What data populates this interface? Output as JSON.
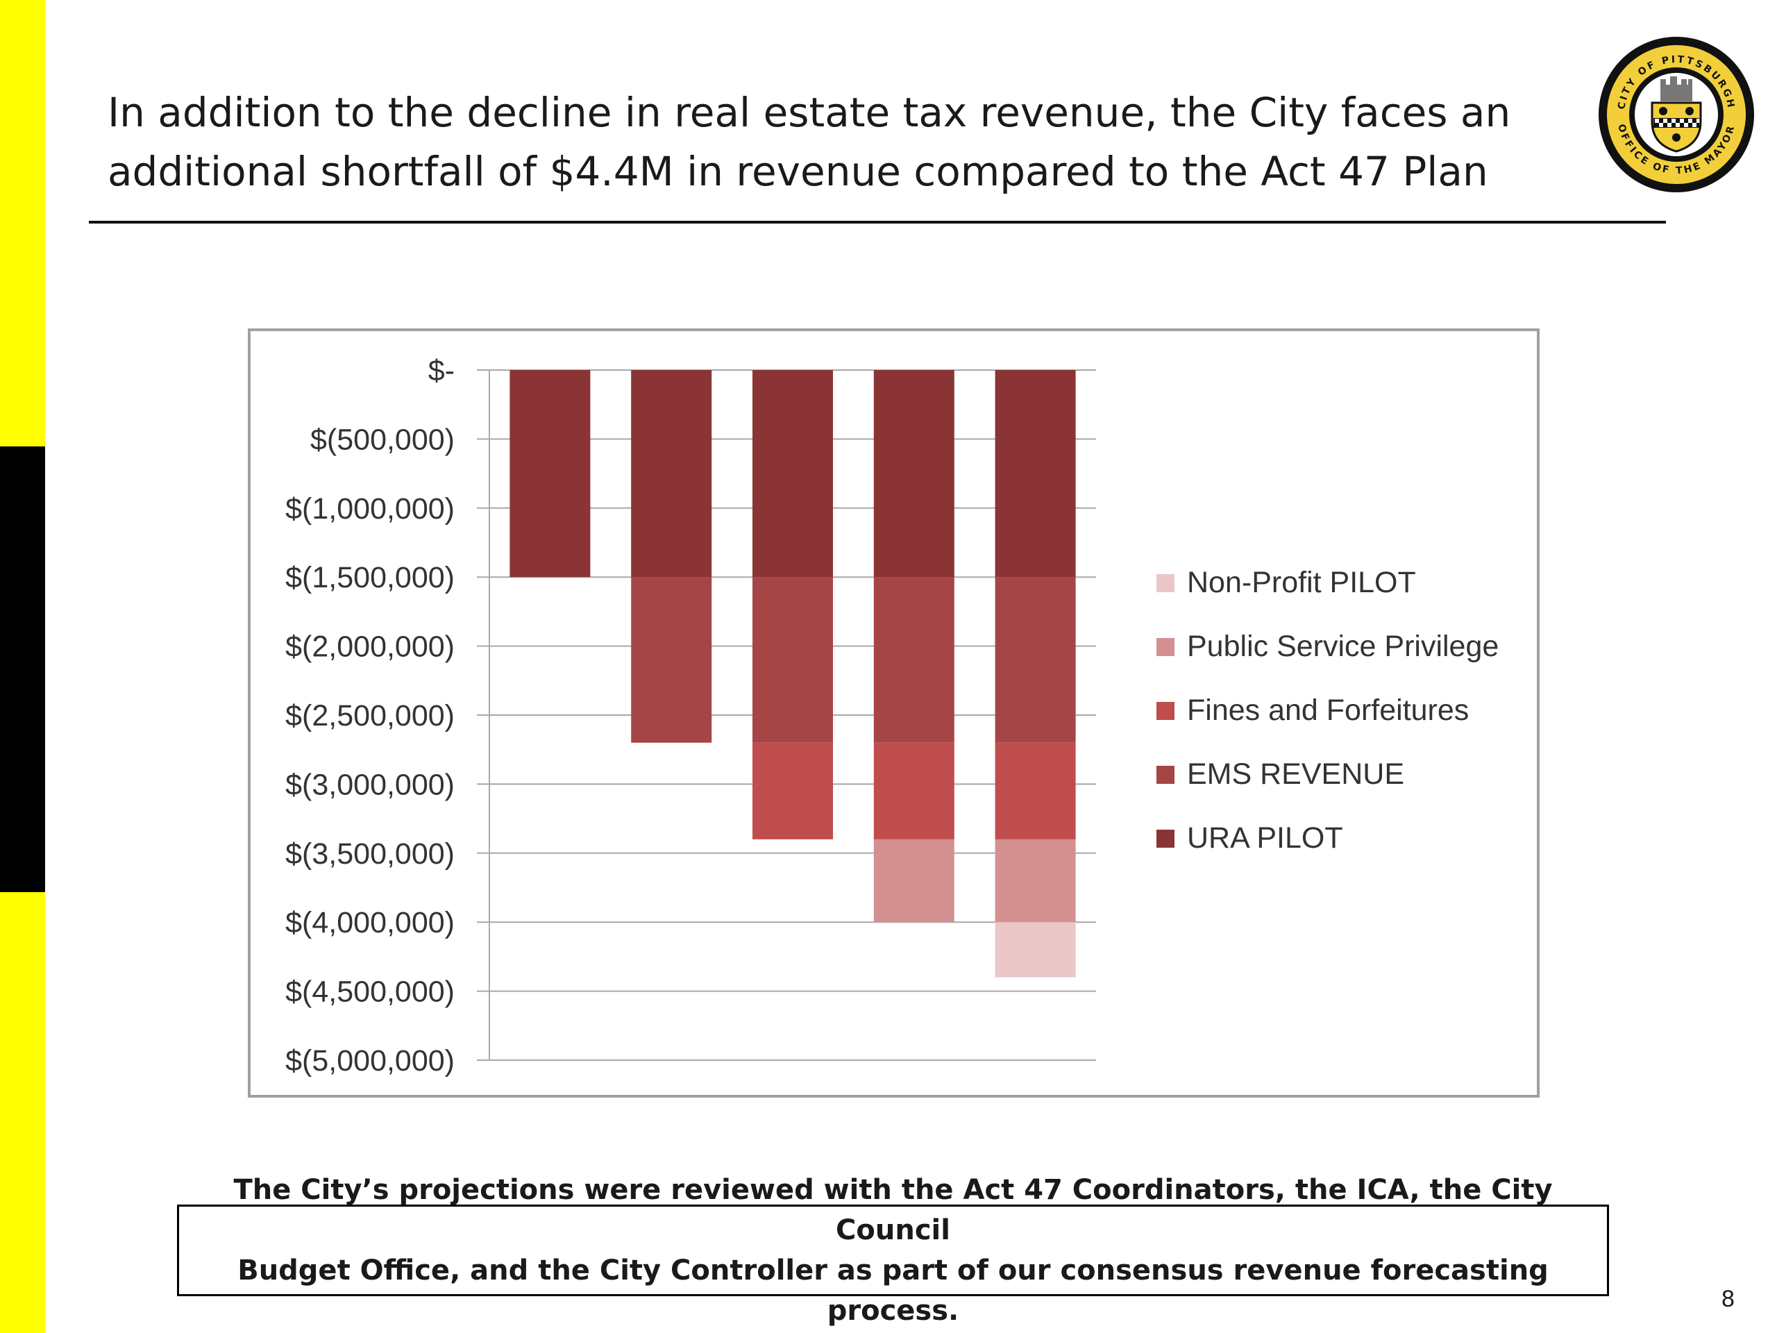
{
  "slide": {
    "title_line1": "In addition to the decline in real estate tax revenue, the City faces an",
    "title_line2": "additional shortfall of $4.4M in revenue compared to the Act 47 Plan",
    "note_line1": "The City’s projections were reviewed with the Act 47 Coordinators, the ICA, the City Council",
    "note_line2": "Budget Office, and the City Controller as part of our consensus revenue forecasting process.",
    "page_number": "8",
    "seal_text_top": "CITY OF PITTSBURGH",
    "seal_text_bottom": "OFFICE OF THE MAYOR"
  },
  "colors": {
    "accent_yellow": "#ffff00",
    "accent_black": "#000000"
  },
  "chart_data": {
    "type": "bar",
    "stacked": true,
    "categories": [
      "",
      "",
      "",
      "",
      ""
    ],
    "ylim": [
      -5000000,
      0
    ],
    "ytick_step": 500000,
    "yticks": [
      {
        "value": 0,
        "label": "$-"
      },
      {
        "value": -500000,
        "label": "$(500,000)"
      },
      {
        "value": -1000000,
        "label": "$(1,000,000)"
      },
      {
        "value": -1500000,
        "label": "$(1,500,000)"
      },
      {
        "value": -2000000,
        "label": "$(2,000,000)"
      },
      {
        "value": -2500000,
        "label": "$(2,500,000)"
      },
      {
        "value": -3000000,
        "label": "$(3,000,000)"
      },
      {
        "value": -3500000,
        "label": "$(3,500,000)"
      },
      {
        "value": -4000000,
        "label": "$(4,000,000)"
      },
      {
        "value": -4500000,
        "label": "$(4,500,000)"
      },
      {
        "value": -5000000,
        "label": "$(5,000,000)"
      }
    ],
    "grid": true,
    "legend_position": "right",
    "series": [
      {
        "name": "URA PILOT",
        "color": "#8b3436",
        "values": [
          -1500000,
          -1500000,
          -1500000,
          -1500000,
          -1500000
        ]
      },
      {
        "name": "EMS REVENUE",
        "color": "#a64545",
        "values": [
          0,
          -1200000,
          -1200000,
          -1200000,
          -1200000
        ]
      },
      {
        "name": "Fines and Forfeitures",
        "color": "#c04d4d",
        "values": [
          0,
          0,
          -700000,
          -700000,
          -700000
        ]
      },
      {
        "name": "Public Service Privilege",
        "color": "#d49090",
        "values": [
          0,
          0,
          0,
          -600000,
          -600000
        ]
      },
      {
        "name": "Non-Profit PILOT",
        "color": "#eac6c6",
        "values": [
          0,
          0,
          0,
          0,
          -400000
        ]
      }
    ],
    "legend_order": [
      "Non-Profit PILOT",
      "Public Service Privilege",
      "Fines and Forfeitures",
      "EMS REVENUE",
      "URA PILOT"
    ]
  }
}
